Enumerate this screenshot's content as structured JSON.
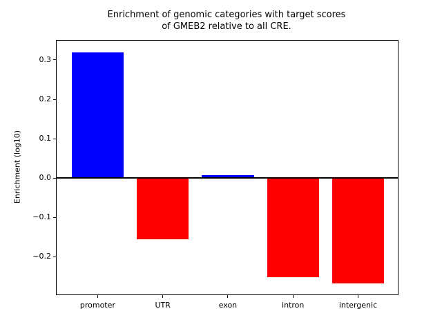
{
  "figure": {
    "background": "#ffffff"
  },
  "chart_data": {
    "type": "bar",
    "title": "Enrichment of genomic categories with target scores\nof GMEB2 relative to all CRE.",
    "title_lines": [
      "Enrichment of genomic categories with target scores",
      "of GMEB2 relative to all CRE."
    ],
    "xlabel": "",
    "ylabel": "Enrichment (log10)",
    "categories": [
      "promoter",
      "UTR",
      "exon",
      "intron",
      "intergenic"
    ],
    "values": [
      0.32,
      -0.156,
      0.007,
      -0.253,
      -0.268
    ],
    "bar_colors": [
      "#0000ff",
      "#ff0000",
      "#0000ff",
      "#ff0000",
      "#ff0000"
    ],
    "positive_color": "#0000ff",
    "negative_color": "#ff0000",
    "yticks": [
      0.3,
      0.2,
      0.1,
      0.0,
      -0.1,
      -0.2
    ],
    "ytick_labels": [
      "0.3",
      "0.2",
      "0.1",
      "0.0",
      "−0.1",
      "−0.2"
    ],
    "ylim": [
      -0.296,
      0.349
    ],
    "xlim": [
      -0.63,
      4.61
    ],
    "bar_width": 0.8,
    "grid": false,
    "legend": false,
    "zero_line": true,
    "axis_color": "#000000",
    "text_color": "#000000"
  }
}
